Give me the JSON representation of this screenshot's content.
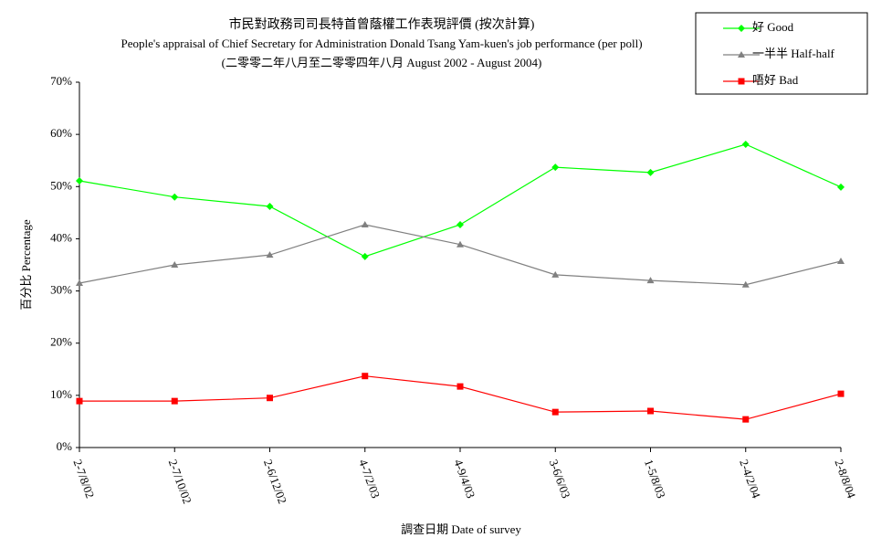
{
  "chart_data": {
    "type": "line",
    "title": "市民對政務司司長特首曾蔭權工作表現評價 (按次計算)",
    "subtitle": "People's appraisal of Chief Secretary for Administration Donald Tsang Yam-kuen's job performance (per poll)",
    "subtitle2": "(二零零二年八月至二零零四年八月 August 2002 - August 2004)",
    "x_label": "調查日期 Date of survey",
    "y_label": "百分比 Percentage",
    "categories": [
      "2-7/8/02",
      "2-7/10/02",
      "2-6/12/02",
      "4-7/2/03",
      "4-9/4/03",
      "3-6/6/03",
      "1-5/8/03",
      "2-4/2/04",
      "2-8/8/04"
    ],
    "series": [
      {
        "name": "好 Good",
        "color": "#00ff00",
        "marker": "diamond",
        "values": [
          51.1,
          48.0,
          46.2,
          36.6,
          42.7,
          53.7,
          52.7,
          58.1,
          49.9
        ]
      },
      {
        "name": "一半半 Half-half",
        "color": "#808080",
        "marker": "triangle",
        "values": [
          31.5,
          35.0,
          36.9,
          42.7,
          38.9,
          33.1,
          32.0,
          31.2,
          35.7
        ]
      },
      {
        "name": "唔好 Bad",
        "color": "#ff0000",
        "marker": "square",
        "values": [
          8.9,
          8.9,
          9.5,
          13.7,
          11.7,
          6.8,
          7.0,
          5.4,
          10.3
        ]
      }
    ],
    "ylim": [
      0,
      70
    ],
    "yticks": [
      {
        "value": 0,
        "label": "0%"
      },
      {
        "value": 10,
        "label": "10%"
      },
      {
        "value": 20,
        "label": "20%"
      },
      {
        "value": 30,
        "label": "30%"
      },
      {
        "value": 40,
        "label": "40%"
      },
      {
        "value": 50,
        "label": "50%"
      },
      {
        "value": 60,
        "label": "60%"
      },
      {
        "value": 70,
        "label": "70%"
      }
    ],
    "legend": "top-right",
    "grid": false
  }
}
